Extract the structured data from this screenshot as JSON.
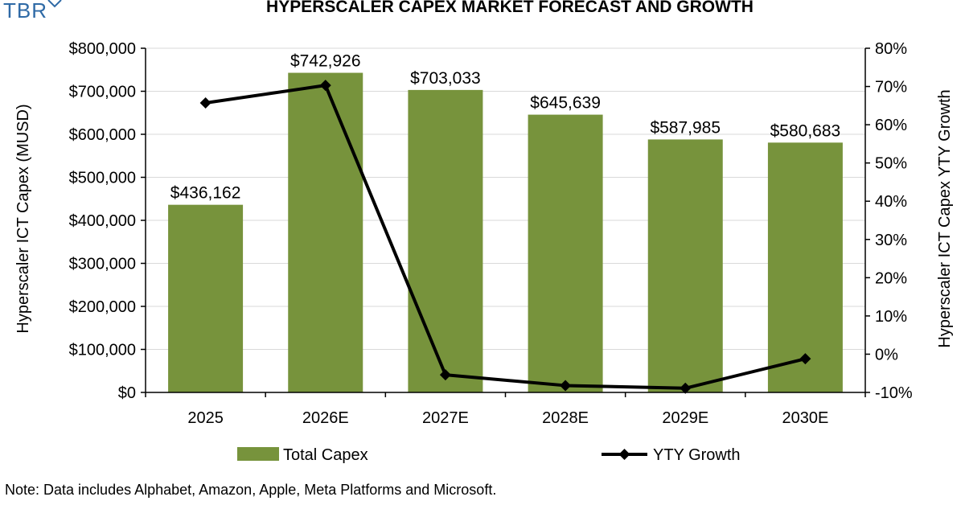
{
  "logo": {
    "text": "TBR",
    "icon": "tbr-logo-mark"
  },
  "note": "Note: Data includes Alphabet, Amazon, Apple, Meta Platforms and Microsoft.",
  "colors": {
    "bar": "#77933c",
    "line": "#000000",
    "axis": "#000000",
    "gridline": "#d9d9d9"
  },
  "chart_data": {
    "type": "bar",
    "title": "HYPERSCALER CAPEX MARKET FORECAST AND GROWTH",
    "categories": [
      "2025",
      "2026E",
      "2027E",
      "2028E",
      "2029E",
      "2030E"
    ],
    "series": [
      {
        "name": "Total Capex",
        "type": "bar",
        "axis": "left",
        "values": [
          436162,
          742926,
          703033,
          645639,
          587985,
          580683
        ],
        "labels": [
          "$436,162",
          "$742,926",
          "$703,033",
          "$645,639",
          "$587,985",
          "$580,683"
        ]
      },
      {
        "name": "YTY Growth",
        "type": "line",
        "axis": "right",
        "marker": "diamond",
        "values": [
          65.7,
          70.3,
          -5.4,
          -8.2,
          -8.9,
          -1.2
        ]
      }
    ],
    "ylabel": "Hyperscaler ICT Capex  (MUSD)",
    "y2label": "Hyperscaler ICT Capex YTY Growth",
    "ylim": [
      0,
      800000
    ],
    "y2lim": [
      -10,
      80
    ],
    "yticks": [
      "$800,000",
      "$700,000",
      "$600,000",
      "$500,000",
      "$400,000",
      "$300,000",
      "$200,000",
      "$100,000",
      "$0"
    ],
    "y2ticks": [
      "80%",
      "70%",
      "60%",
      "50%",
      "40%",
      "30%",
      "20%",
      "10%",
      "0%",
      "-10%"
    ],
    "grid": true,
    "legend": "bottom"
  }
}
